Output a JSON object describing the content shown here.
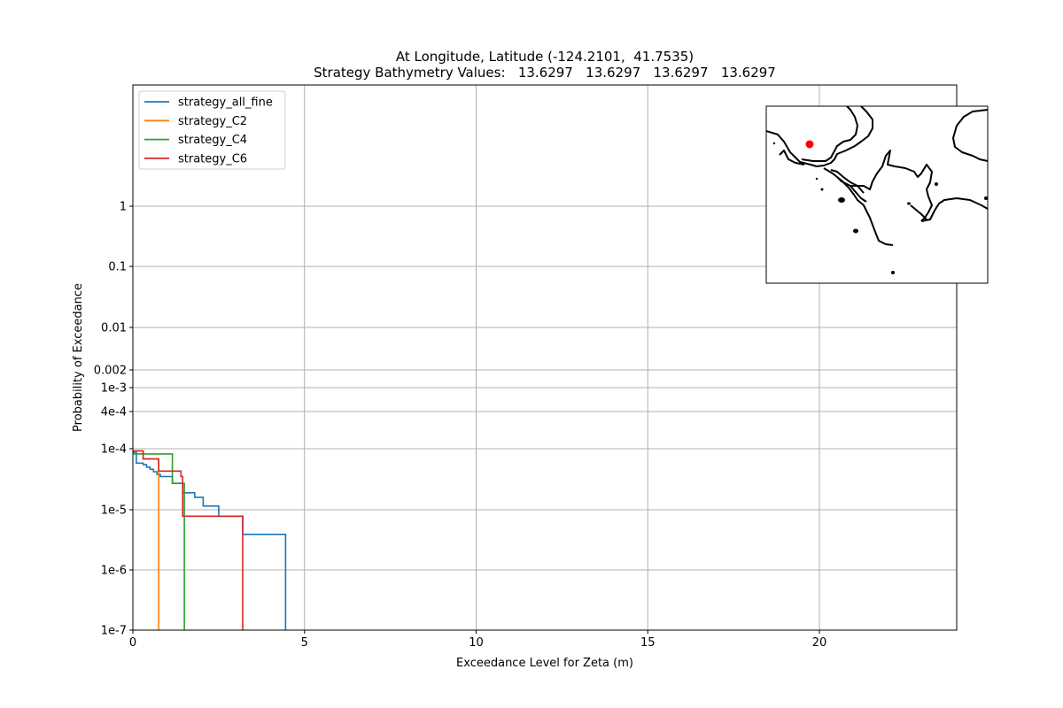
{
  "chart_data": {
    "type": "line",
    "title": "At Longitude, Latitude (-124.2101,  41.7535)",
    "subtitle": "Strategy Bathymetry Values:   13.6297   13.6297   13.6297   13.6297",
    "xlabel": "Exceedance Level for Zeta (m)",
    "ylabel": "Probability of Exceedance",
    "xlim": [
      0,
      24
    ],
    "y_scale": "custom-log",
    "grid": true,
    "legend_position": "top-left",
    "x_ticks": [
      {
        "value": 0,
        "label": "0"
      },
      {
        "value": 5,
        "label": "5"
      },
      {
        "value": 10,
        "label": "10"
      },
      {
        "value": 15,
        "label": "15"
      },
      {
        "value": 20,
        "label": "20"
      }
    ],
    "y_ticks": [
      {
        "value": 1,
        "label": "1"
      },
      {
        "value": 0.1,
        "label": "0.1"
      },
      {
        "value": 0.01,
        "label": "0.01"
      },
      {
        "value": 0.002,
        "label": "0.002"
      },
      {
        "value": 0.001,
        "label": "1e-3"
      },
      {
        "value": 0.0004,
        "label": "4e-4"
      },
      {
        "value": 0.0001,
        "label": "1e-4"
      },
      {
        "value": 1e-05,
        "label": "1e-5"
      },
      {
        "value": 1e-06,
        "label": "1e-6"
      },
      {
        "value": 1e-07,
        "label": "1e-7"
      }
    ],
    "series": [
      {
        "name": "strategy_all_fine",
        "color": "#1f77b4",
        "points": [
          [
            0.0,
            8.75e-05
          ],
          [
            0.1,
            5.8e-05
          ],
          [
            0.3,
            5.5e-05
          ],
          [
            0.4,
            5e-05
          ],
          [
            0.5,
            4.6e-05
          ],
          [
            0.6,
            4.2e-05
          ],
          [
            0.7,
            3.8e-05
          ],
          [
            0.8,
            3.5e-05
          ],
          [
            1.15,
            2.7e-05
          ],
          [
            1.45,
            1.9e-05
          ],
          [
            1.8,
            1.6e-05
          ],
          [
            2.05,
            1.15e-05
          ],
          [
            2.5,
            7.8e-06
          ],
          [
            3.2,
            3.9e-06
          ],
          [
            4.45,
            1e-07
          ]
        ]
      },
      {
        "name": "strategy_C2",
        "color": "#ff7f0e",
        "points": [
          [
            0.0,
            9.2e-05
          ],
          [
            0.3,
            6.8e-05
          ],
          [
            0.75,
            1e-07
          ]
        ]
      },
      {
        "name": "strategy_C4",
        "color": "#2ca02c",
        "points": [
          [
            0.0,
            8.2e-05
          ],
          [
            1.15,
            2.7e-05
          ],
          [
            1.5,
            1e-07
          ]
        ]
      },
      {
        "name": "strategy_C6",
        "color": "#d62728",
        "points": [
          [
            0.0,
            9.2e-05
          ],
          [
            0.3,
            6.8e-05
          ],
          [
            0.75,
            4.3e-05
          ],
          [
            1.4,
            3.5e-05
          ],
          [
            1.45,
            7.8e-06
          ],
          [
            3.2,
            1e-07
          ]
        ]
      }
    ],
    "inset_map": {
      "marker_color": "#ff0000"
    }
  }
}
